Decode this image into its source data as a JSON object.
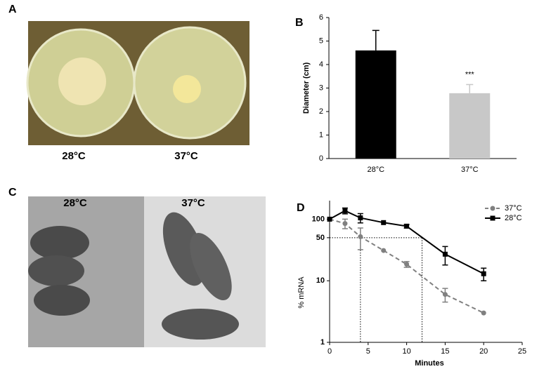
{
  "figure": {
    "panel_labels": [
      "A",
      "B",
      "C",
      "D"
    ],
    "photo_a_labels": [
      "28°C",
      "37°C"
    ],
    "photo_c_labels": [
      "28°C",
      "37°C"
    ]
  },
  "chart_data": [
    {
      "type": "bar",
      "ylabel": "Diameter (cm)",
      "categories": [
        "28°C",
        "37°C"
      ],
      "values": [
        4.6,
        2.78
      ],
      "errors": [
        0.85,
        0.37
      ],
      "colors": [
        "#000000",
        "#c8c8c8"
      ],
      "annotation": "***",
      "ylim": [
        0,
        6
      ],
      "yticks": [
        0,
        1,
        2,
        3,
        4,
        5,
        6
      ]
    },
    {
      "type": "line",
      "xlabel": "Minutes",
      "ylabel": "% mRNA",
      "log_y": true,
      "legend": "upper right",
      "x": [
        0,
        2,
        4,
        7,
        10,
        15,
        20
      ],
      "series": [
        {
          "name": "37°C",
          "color": "#808080",
          "marker": "circle",
          "dashed": true,
          "values": [
            100,
            85,
            52,
            31,
            18.5,
            6,
            3
          ],
          "errors": [
            null,
            15,
            20,
            null,
            2,
            1.5,
            null
          ]
        },
        {
          "name": "28°C",
          "color": "#000000",
          "marker": "square",
          "dashed": false,
          "values": [
            100,
            137,
            105,
            88,
            77,
            27,
            13
          ],
          "errors": [
            null,
            15,
            18,
            null,
            5,
            9,
            3
          ]
        }
      ],
      "guides": {
        "y": 50,
        "x": [
          4,
          12
        ]
      },
      "xlim": [
        0,
        25
      ],
      "xticks": [
        0,
        5,
        10,
        15,
        20,
        25
      ],
      "ylim": [
        1,
        200
      ],
      "yticks": [
        1,
        10,
        50,
        100
      ]
    }
  ]
}
